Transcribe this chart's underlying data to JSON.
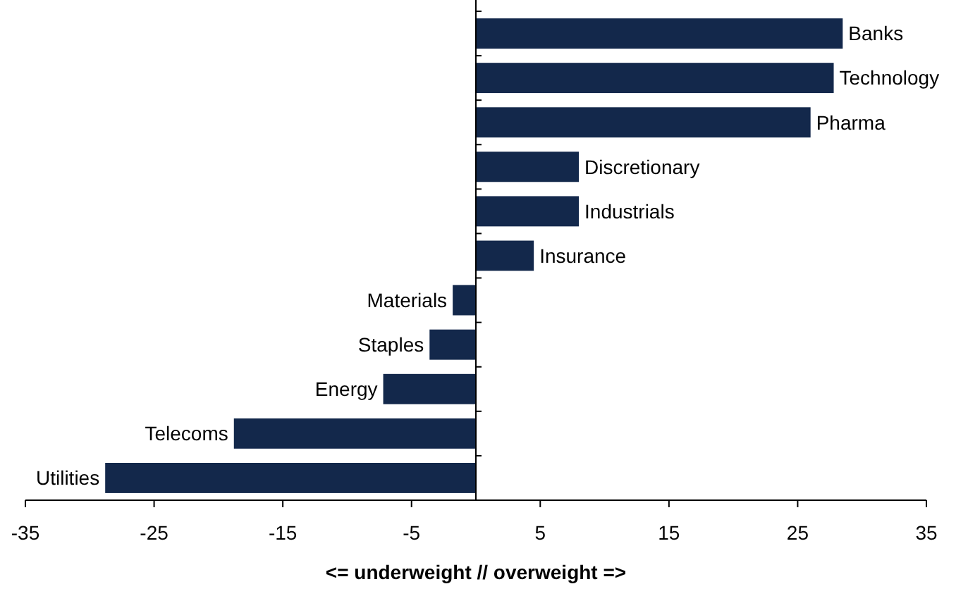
{
  "chart_data": {
    "type": "bar",
    "orientation": "horizontal",
    "xlabel": "<= underweight // overweight =>",
    "categories": [
      "Banks",
      "Technology",
      "Pharma",
      "Discretionary",
      "Industrials",
      "Insurance",
      "Materials",
      "Staples",
      "Energy",
      "Telecoms",
      "Utilities"
    ],
    "values": [
      28.5,
      27.8,
      26,
      8,
      8,
      4.5,
      -1.8,
      -3.6,
      -7.2,
      -18.8,
      -28.8
    ],
    "color": "#13284b",
    "xlim": [
      -35,
      35
    ],
    "xticks": [
      -35,
      -25,
      -15,
      -5,
      5,
      15,
      25,
      35
    ],
    "grid": false
  }
}
